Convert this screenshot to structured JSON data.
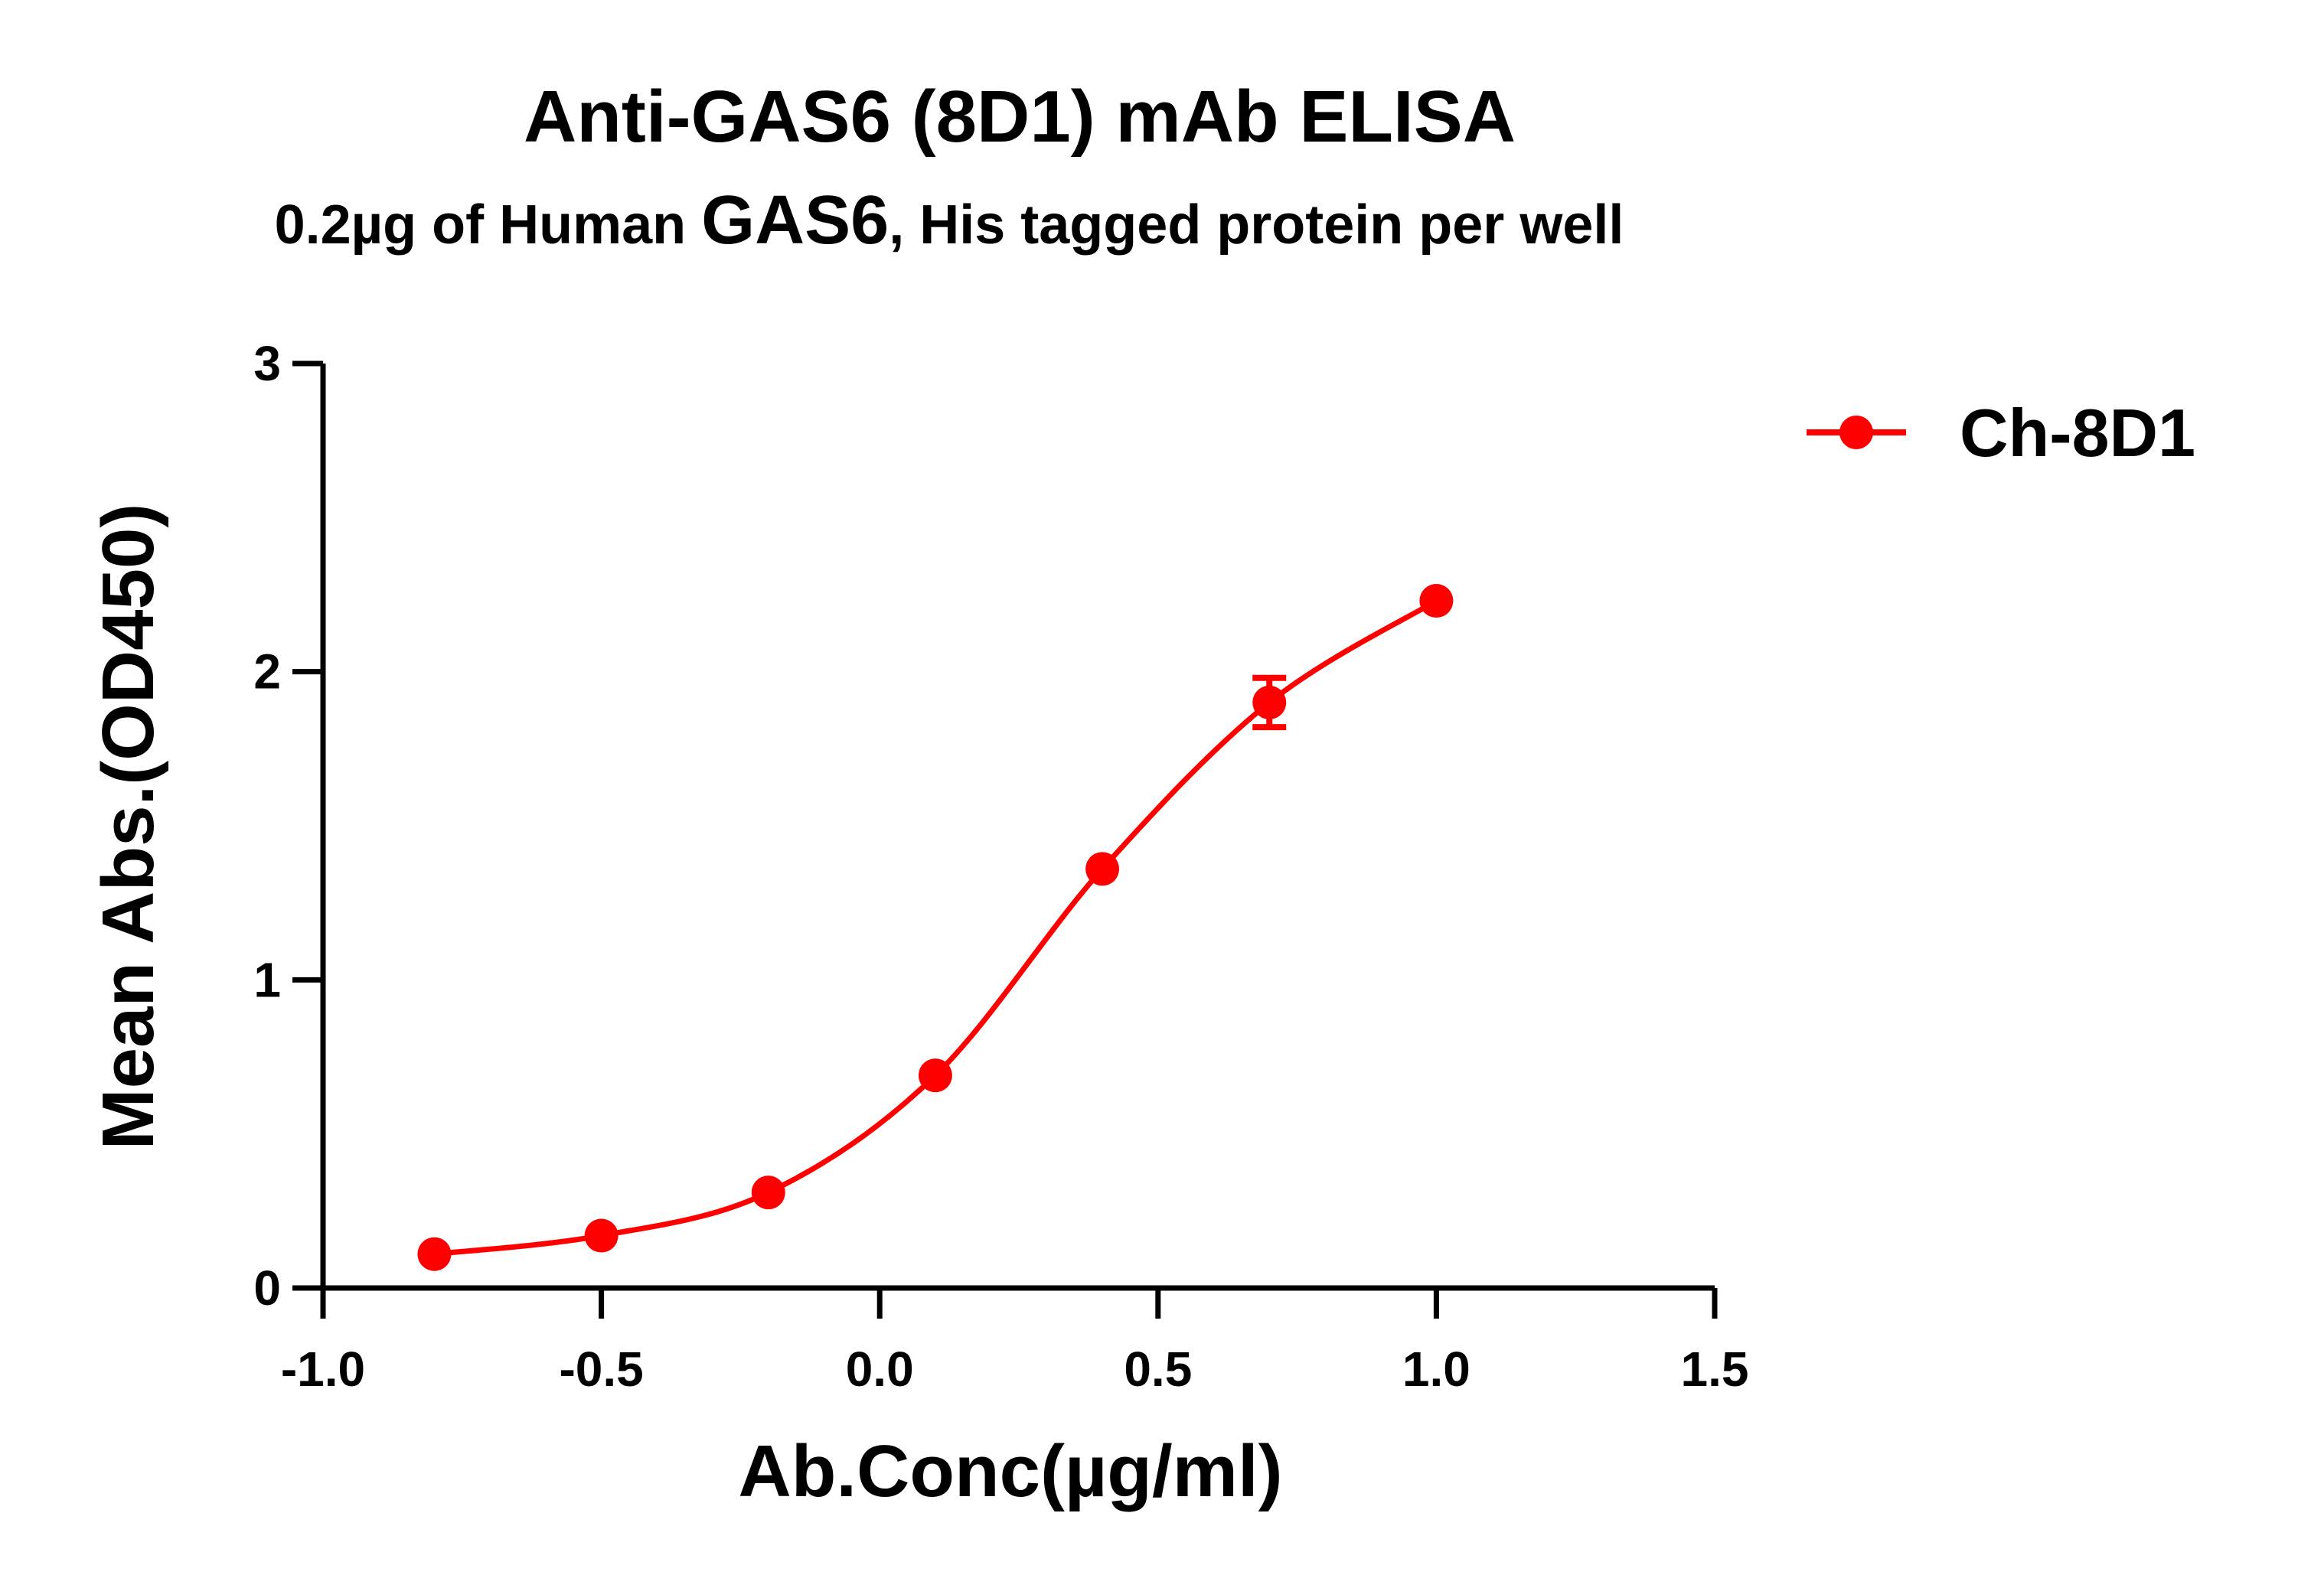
{
  "chart_data": {
    "type": "line",
    "title": "Anti-GAS6 (8D1) mAb ELISA",
    "subtitle": {
      "before": "0.2µg of Human ",
      "emphasis": "GAS6",
      "after": ", His tagged protein per well"
    },
    "xlabel": "Ab.Conc(µg/ml)",
    "ylabel": "Mean Abs.(OD450)",
    "xlim": [
      -1.0,
      1.5
    ],
    "ylim": [
      0,
      3
    ],
    "xticks": [
      -1.0,
      -0.5,
      0.0,
      0.5,
      1.0,
      1.5
    ],
    "xtick_labels": [
      "-1.0",
      "-0.5",
      "0.0",
      "0.5",
      "1.0",
      "1.5"
    ],
    "yticks": [
      0,
      1,
      2,
      3
    ],
    "ytick_labels": [
      "0",
      "1",
      "2",
      "3"
    ],
    "grid": false,
    "legend_position": "top-right",
    "series": [
      {
        "name": "Ch-8D1",
        "color": "#ff0000",
        "marker": "circle",
        "x": [
          -0.8,
          -0.5,
          -0.2,
          0.1,
          0.4,
          0.7,
          1.0
        ],
        "y": [
          0.11,
          0.17,
          0.31,
          0.69,
          1.36,
          1.9,
          2.23
        ],
        "error": [
          0.0,
          0.0,
          0.0,
          0.0,
          0.0,
          0.08,
          0.0
        ],
        "fit": "sigmoidal"
      }
    ]
  }
}
